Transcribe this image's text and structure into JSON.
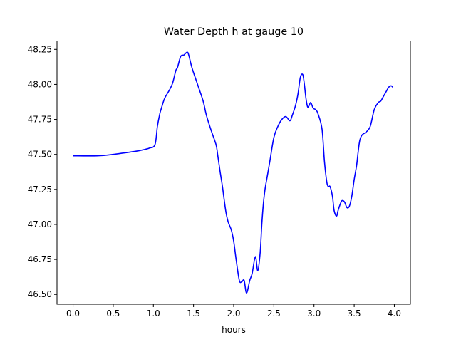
{
  "chart_data": {
    "type": "line",
    "title": "Water Depth h at gauge 10",
    "xlabel": "hours",
    "ylabel": "",
    "xlim": [
      -0.2,
      4.2
    ],
    "ylim": [
      46.43,
      48.31
    ],
    "xticks": [
      0.0,
      0.5,
      1.0,
      1.5,
      2.0,
      2.5,
      3.0,
      3.5,
      4.0
    ],
    "xtick_labels": [
      "0.0",
      "0.5",
      "1.0",
      "1.5",
      "2.0",
      "2.5",
      "3.0",
      "3.5",
      "4.0"
    ],
    "yticks": [
      46.5,
      46.75,
      47.0,
      47.25,
      47.5,
      47.75,
      48.0,
      48.25
    ],
    "ytick_labels": [
      "46.50",
      "46.75",
      "47.00",
      "47.25",
      "47.50",
      "47.75",
      "48.00",
      "48.25"
    ],
    "grid": false,
    "series": [
      {
        "color": "#0000ff",
        "x": [
          0.0,
          0.3,
          0.5,
          0.75,
          0.85,
          0.95,
          1.02,
          1.05,
          1.08,
          1.1,
          1.14,
          1.2,
          1.24,
          1.28,
          1.3,
          1.34,
          1.38,
          1.42,
          1.44,
          1.48,
          1.55,
          1.62,
          1.66,
          1.72,
          1.78,
          1.8,
          1.83,
          1.86,
          1.9,
          1.93,
          1.97,
          2.0,
          2.03,
          2.07,
          2.1,
          2.13,
          2.16,
          2.2,
          2.23,
          2.27,
          2.3,
          2.33,
          2.35,
          2.37,
          2.39,
          2.42,
          2.45,
          2.5,
          2.55,
          2.6,
          2.65,
          2.7,
          2.73,
          2.77,
          2.8,
          2.83,
          2.86,
          2.88,
          2.9,
          2.92,
          2.94,
          2.96,
          2.99,
          3.02,
          3.05,
          3.1,
          3.13,
          3.16,
          3.18,
          3.2,
          3.23,
          3.25,
          3.28,
          3.3,
          3.33,
          3.35,
          3.38,
          3.41,
          3.44,
          3.47,
          3.5,
          3.53,
          3.55,
          3.57,
          3.6,
          3.65,
          3.7,
          3.75,
          3.8,
          3.83,
          3.86,
          3.9,
          3.93,
          3.96,
          3.98
        ],
        "values": [
          47.49,
          47.49,
          47.5,
          47.52,
          47.53,
          47.545,
          47.57,
          47.7,
          47.79,
          47.83,
          47.9,
          47.96,
          48.01,
          48.1,
          48.12,
          48.2,
          48.21,
          48.23,
          48.21,
          48.12,
          48.0,
          47.88,
          47.78,
          47.67,
          47.57,
          47.5,
          47.38,
          47.27,
          47.1,
          47.02,
          46.96,
          46.88,
          46.75,
          46.6,
          46.59,
          46.6,
          46.51,
          46.6,
          46.65,
          46.77,
          46.67,
          46.8,
          47.0,
          47.15,
          47.25,
          47.35,
          47.45,
          47.62,
          47.7,
          47.75,
          47.77,
          47.74,
          47.78,
          47.85,
          47.93,
          48.05,
          48.07,
          48.0,
          47.9,
          47.84,
          47.85,
          47.87,
          47.83,
          47.82,
          47.79,
          47.68,
          47.45,
          47.3,
          47.27,
          47.27,
          47.2,
          47.1,
          47.06,
          47.1,
          47.15,
          47.17,
          47.16,
          47.12,
          47.13,
          47.2,
          47.32,
          47.42,
          47.52,
          47.6,
          47.64,
          47.66,
          47.7,
          47.82,
          47.87,
          47.88,
          47.91,
          47.95,
          47.98,
          47.99,
          47.98
        ]
      }
    ]
  }
}
